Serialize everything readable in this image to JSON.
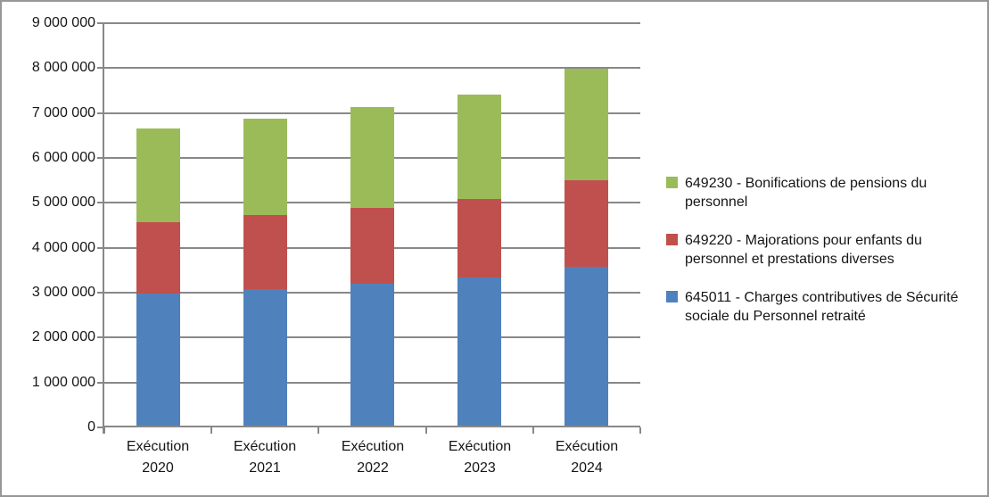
{
  "window": {
    "background": "#ffffff",
    "border_color": "#979797"
  },
  "chart_data": {
    "type": "bar",
    "stacked": true,
    "title": "",
    "xlabel": "",
    "ylabel": "",
    "categories": [
      "Exécution 2020",
      "Exécution 2021",
      "Exécution 2022",
      "Exécution 2023",
      "Exécution 2024"
    ],
    "series": [
      {
        "id": "645011",
        "name": "645011 - Charges contributives de Sécurité sociale du Personnel retraité",
        "color": "#4F81BD",
        "values": [
          2980000,
          3070000,
          3190000,
          3330000,
          3580000
        ]
      },
      {
        "id": "649220",
        "name": "649220 - Majorations pour enfants du personnel et prestations diverses",
        "color": "#C0504D",
        "values": [
          1580000,
          1650000,
          1700000,
          1750000,
          1920000
        ]
      },
      {
        "id": "649230",
        "name": "649230 - Bonifications de pensions du personnel",
        "color": "#9BBB59",
        "values": [
          2100000,
          2160000,
          2240000,
          2330000,
          2480000
        ]
      }
    ],
    "stack_totals": [
      6660000,
      6880000,
      7130000,
      7410000,
      7980000
    ],
    "ylim": [
      0,
      9000000
    ],
    "ytick_step": 1000000,
    "ytick_labels": [
      "0",
      "1 000 000",
      "2 000 000",
      "3 000 000",
      "4 000 000",
      "5 000 000",
      "6 000 000",
      "7 000 000",
      "8 000 000",
      "9 000 000"
    ],
    "grid": true,
    "gridline_color": "#888888",
    "axis_color": "#888888",
    "text_color": "#151515",
    "legend_position": "right",
    "legend_order_top_to_bottom": [
      "649230",
      "649220",
      "645011"
    ]
  }
}
